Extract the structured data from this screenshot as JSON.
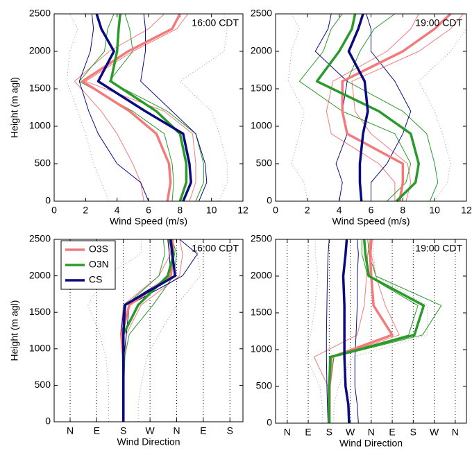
{
  "chart_data": [
    {
      "type": "profile",
      "annotation": "16:00 CDT",
      "xlabel": "Wind Speed (m/s)",
      "ylabel": "Height (m agl)",
      "xlim": [
        0,
        12
      ],
      "xticks": [
        0,
        2,
        4,
        6,
        8,
        10,
        12
      ],
      "ylim": [
        0,
        2500
      ],
      "yticks": [
        0,
        500,
        1000,
        1500,
        2000,
        2500
      ],
      "y": [
        0,
        250,
        500,
        900,
        1200,
        1600,
        2000,
        2300,
        2500
      ],
      "series": [
        {
          "color": "#999999",
          "style": "dotted",
          "values": [
            3.5,
            3,
            2.5,
            2,
            1.5,
            0.8,
            1,
            1.5,
            1
          ]
        },
        {
          "color": "#999999",
          "style": "dotted",
          "values": [
            10.5,
            11,
            11,
            10.5,
            10,
            8,
            10.8,
            11,
            10.8
          ]
        },
        {
          "color": "#f47a7a",
          "style": "thin",
          "values": [
            5.7,
            5.5,
            5,
            4,
            3,
            1.3,
            3.5,
            6,
            7
          ]
        },
        {
          "color": "#f47a7a",
          "style": "thin",
          "values": [
            8.6,
            9,
            9,
            8.8,
            7,
            2,
            5,
            7.8,
            8.5
          ]
        },
        {
          "color": "#2a9a2a",
          "style": "thin",
          "values": [
            7.5,
            7.6,
            7.5,
            7,
            5,
            1.6,
            3.2,
            3.4,
            3.8
          ]
        },
        {
          "color": "#2a9a2a",
          "style": "thin",
          "values": [
            9,
            9.5,
            9.5,
            9,
            7.2,
            3.5,
            5,
            4.8,
            4.5
          ]
        },
        {
          "color": "#0a0a80",
          "style": "thin",
          "values": [
            6,
            5.5,
            4,
            2.8,
            2.2,
            1.6,
            2.3,
            2.5,
            2.4
          ]
        },
        {
          "color": "#0a0a80",
          "style": "thin",
          "values": [
            9.2,
            9.7,
            9.6,
            9,
            7.5,
            5.5,
            5.8,
            5.8,
            5.7
          ]
        },
        {
          "color": "#f47a7a",
          "style": "thick",
          "values": [
            7.2,
            7.4,
            7.3,
            6.5,
            4.8,
            1.8,
            4.7,
            7.5,
            8
          ]
        },
        {
          "color": "#2a9a2a",
          "style": "thick",
          "values": [
            8,
            8.4,
            8.4,
            8,
            6.5,
            3.6,
            4,
            4.1,
            4.2
          ]
        },
        {
          "color": "#0a0a80",
          "style": "thick",
          "values": [
            8.2,
            8.7,
            8.6,
            8.2,
            5.8,
            2.8,
            3.8,
            3,
            2.7
          ]
        }
      ]
    },
    {
      "type": "profile",
      "annotation": "19:00 CDT",
      "xlabel": "Wind Speed (m/s)",
      "xlim": [
        0,
        12
      ],
      "xticks": [
        0,
        2,
        4,
        6,
        8,
        10,
        12
      ],
      "ylim": [
        0,
        2500
      ],
      "yticks": [
        0,
        500,
        1000,
        1500,
        2000,
        2500
      ],
      "y": [
        0,
        250,
        500,
        900,
        1200,
        1600,
        2000,
        2300,
        2500
      ],
      "series": [
        {
          "color": "#999999",
          "style": "dotted",
          "values": [
            2,
            1.8,
            1,
            1.5,
            1.8,
            0.8,
            1,
            1.5,
            1
          ]
        },
        {
          "color": "#999999",
          "style": "dotted",
          "values": [
            10,
            10.8,
            11,
            10.5,
            10,
            9,
            11,
            12,
            12
          ]
        },
        {
          "color": "#f47a7a",
          "style": "thin",
          "values": [
            7.5,
            7.5,
            6.5,
            3.5,
            3.2,
            3.6,
            7,
            8.5,
            9
          ]
        },
        {
          "color": "#f47a7a",
          "style": "thin",
          "values": [
            8.2,
            8.5,
            8.3,
            6,
            5,
            4.8,
            9,
            11,
            11.8
          ]
        },
        {
          "color": "#2a9a2a",
          "style": "thin",
          "values": [
            7,
            8.2,
            8.5,
            7.5,
            4.2,
            1.5,
            3,
            3.5,
            4.2
          ]
        },
        {
          "color": "#2a9a2a",
          "style": "thin",
          "values": [
            9.7,
            10.2,
            10,
            9.5,
            8,
            4.5,
            5.3,
            6.2,
            7.5
          ]
        },
        {
          "color": "#0a0a80",
          "style": "thin",
          "values": [
            4,
            4.2,
            3.8,
            4.5,
            4.2,
            4.5,
            2.5,
            3.3,
            3.5
          ]
        },
        {
          "color": "#0a0a80",
          "style": "thin",
          "values": [
            6,
            6,
            7,
            8,
            8.5,
            7.5,
            6,
            6,
            5.7
          ]
        },
        {
          "color": "#f47a7a",
          "style": "thick",
          "values": [
            7.8,
            8,
            8,
            4.5,
            4.2,
            4.2,
            8,
            10,
            11
          ]
        },
        {
          "color": "#2a9a2a",
          "style": "thick",
          "values": [
            7.6,
            8.8,
            9,
            8.5,
            6.5,
            2.6,
            4,
            4.8,
            5
          ]
        },
        {
          "color": "#0a0a80",
          "style": "thick",
          "values": [
            5.4,
            5.3,
            5.3,
            5.5,
            5.8,
            5.6,
            4.6,
            5.2,
            5.5
          ]
        }
      ]
    },
    {
      "type": "profile",
      "annotation": "16:00 CDT",
      "xlabel": "Wind Direction",
      "ylabel": "Height (m agl)",
      "grid": "x",
      "legend": "upper left",
      "xlim": [
        -54,
        584
      ],
      "xticks": [
        {
          "value": 0,
          "label": "N"
        },
        {
          "value": 90,
          "label": "E"
        },
        {
          "value": 180,
          "label": "S"
        },
        {
          "value": 270,
          "label": "W"
        },
        {
          "value": 360,
          "label": "N"
        },
        {
          "value": 450,
          "label": "E"
        },
        {
          "value": 540,
          "label": "S"
        }
      ],
      "ylim": [
        0,
        2500
      ],
      "yticks": [
        0,
        500,
        1000,
        1500,
        2000,
        2500
      ],
      "y": [
        0,
        250,
        500,
        900,
        1200,
        1600,
        2000,
        2300,
        2500
      ],
      "series": [
        {
          "color": "#999999",
          "style": "dotted",
          "values": [
            130,
            130,
            130,
            120,
            100,
            60,
            120,
            240,
            240
          ]
        },
        {
          "color": "#999999",
          "style": "dotted",
          "values": [
            230,
            230,
            240,
            260,
            300,
            360,
            440,
            430,
            420
          ]
        },
        {
          "color": "#f47a7a",
          "style": "thin",
          "values": [
            178,
            178,
            178,
            176,
            170,
            180,
            300,
            340,
            330
          ]
        },
        {
          "color": "#f47a7a",
          "style": "thin",
          "values": [
            182,
            182,
            182,
            185,
            190,
            240,
            370,
            380,
            370
          ]
        },
        {
          "color": "#2a9a2a",
          "style": "thin",
          "values": [
            180,
            180,
            180,
            180,
            175,
            190,
            300,
            320,
            315
          ]
        },
        {
          "color": "#2a9a2a",
          "style": "thin",
          "values": [
            182,
            182,
            182,
            185,
            200,
            280,
            350,
            360,
            345
          ]
        },
        {
          "color": "#0a0a80",
          "style": "thin",
          "values": [
            179,
            179,
            179,
            178,
            172,
            182,
            340,
            335,
            330
          ]
        },
        {
          "color": "#0a0a80",
          "style": "thin",
          "values": [
            181,
            181,
            181,
            182,
            190,
            200,
            380,
            430,
            370
          ]
        },
        {
          "name": "O3S",
          "color": "#f47a7a",
          "style": "thick",
          "values": [
            180,
            180,
            180,
            180,
            175,
            200,
            340,
            350,
            345
          ]
        },
        {
          "name": "O3N",
          "color": "#2a9a2a",
          "style": "thick",
          "values": [
            180,
            180,
            180,
            180,
            180,
            230,
            330,
            350,
            335
          ]
        },
        {
          "name": "CS",
          "color": "#0a0a80",
          "style": "thick",
          "values": [
            180,
            180,
            180,
            180,
            180,
            185,
            355,
            345,
            340
          ]
        }
      ]
    },
    {
      "type": "profile",
      "annotation": "19:00 CDT",
      "xlabel": "Wind Direction",
      "grid": "x",
      "xlim": [
        -50,
        768
      ],
      "xticks": [
        {
          "value": 0,
          "label": "N"
        },
        {
          "value": 90,
          "label": "E"
        },
        {
          "value": 180,
          "label": "S"
        },
        {
          "value": 270,
          "label": "W"
        },
        {
          "value": 360,
          "label": "N"
        },
        {
          "value": 450,
          "label": "E"
        },
        {
          "value": 540,
          "label": "S"
        },
        {
          "value": 630,
          "label": "W"
        },
        {
          "value": 720,
          "label": "N"
        }
      ],
      "ylim": [
        0,
        2500
      ],
      "yticks": [
        0,
        500,
        1000,
        1500,
        2000,
        2500
      ],
      "y": [
        0,
        250,
        500,
        900,
        1200,
        1600,
        2000,
        2300,
        2500
      ],
      "series": [
        {
          "color": "#999999",
          "style": "dotted",
          "values": [
            150,
            150,
            140,
            80,
            100,
            120,
            130,
            120,
            120
          ]
        },
        {
          "color": "#999999",
          "style": "dotted",
          "values": [
            200,
            200,
            220,
            280,
            600,
            600,
            380,
            370,
            370
          ]
        },
        {
          "color": "#f47a7a",
          "style": "thin",
          "values": [
            175,
            175,
            175,
            115,
            300,
            330,
            340,
            345,
            355
          ]
        },
        {
          "color": "#f47a7a",
          "style": "thin",
          "values": [
            185,
            185,
            185,
            200,
            480,
            420,
            380,
            360,
            365
          ]
        },
        {
          "color": "#2a9a2a",
          "style": "thin",
          "values": [
            180,
            180,
            180,
            180,
            520,
            560,
            345,
            320,
            320
          ]
        },
        {
          "color": "#2a9a2a",
          "style": "thin",
          "values": [
            182,
            182,
            182,
            200,
            580,
            660,
            380,
            350,
            345
          ]
        },
        {
          "color": "#0a0a80",
          "style": "thin",
          "values": [
            175,
            172,
            170,
            168,
            168,
            170,
            172,
            175,
            180
          ]
        },
        {
          "color": "#0a0a80",
          "style": "thin",
          "values": [
            305,
            300,
            290,
            290,
            295,
            300,
            300,
            305,
            300
          ]
        },
        {
          "color": "#f47a7a",
          "style": "thick",
          "values": [
            180,
            180,
            180,
            190,
            450,
            370,
            360,
            355,
            360
          ]
        },
        {
          "color": "#2a9a2a",
          "style": "thick",
          "values": [
            180,
            180,
            180,
            185,
            545,
            585,
            350,
            335,
            330
          ]
        },
        {
          "color": "#0a0a80",
          "style": "thick",
          "values": [
            265,
            262,
            250,
            245,
            245,
            245,
            240,
            250,
            255
          ]
        }
      ]
    }
  ]
}
